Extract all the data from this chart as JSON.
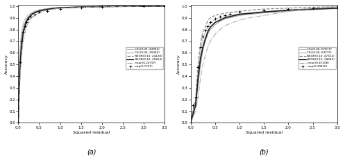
{
  "xlabel": "Squared residual",
  "ylabel": "Accuracy",
  "legend_a": [
    "CSL(0.05: 43965)",
    "CSL(0.06: 25965)",
    "NEGR(0.10: 24228)",
    "NEGR(0.10: 29264)",
    "mean(0.24797)",
    "map(0.1797)"
  ],
  "legend_b": [
    "CSL(0.04: 67879)",
    "CSL(0.04: 64279)",
    "NEGR(0.10: 47322)",
    "NEGR(0.10: 39685)",
    "mean(0.47308)",
    "map(0.39430)"
  ],
  "plot_a": {
    "csl1": {
      "x": [
        0,
        0.02,
        0.04,
        0.06,
        0.08,
        0.1,
        0.12,
        0.15,
        0.18,
        0.2,
        0.25,
        0.3,
        0.35,
        0.4,
        0.5,
        0.6,
        0.7,
        0.8,
        1.0,
        1.5,
        2.0,
        2.5,
        3.0,
        3.5
      ],
      "y": [
        0,
        0.45,
        0.62,
        0.72,
        0.78,
        0.82,
        0.85,
        0.88,
        0.9,
        0.91,
        0.93,
        0.94,
        0.95,
        0.96,
        0.97,
        0.975,
        0.98,
        0.985,
        0.99,
        0.995,
        0.998,
        0.999,
        1.0,
        1.0
      ]
    },
    "csl2": {
      "x": [
        0,
        0.02,
        0.04,
        0.06,
        0.08,
        0.1,
        0.12,
        0.15,
        0.18,
        0.2,
        0.25,
        0.3,
        0.35,
        0.4,
        0.5,
        0.6,
        0.7,
        0.8,
        1.0,
        1.5,
        2.0,
        2.5,
        3.0,
        3.5
      ],
      "y": [
        0,
        0.38,
        0.55,
        0.65,
        0.72,
        0.77,
        0.81,
        0.85,
        0.87,
        0.89,
        0.91,
        0.93,
        0.94,
        0.95,
        0.965,
        0.972,
        0.978,
        0.982,
        0.988,
        0.993,
        0.997,
        0.999,
        1.0,
        1.0
      ]
    },
    "negr1": {
      "x": [
        0,
        0.02,
        0.04,
        0.06,
        0.08,
        0.1,
        0.12,
        0.15,
        0.18,
        0.2,
        0.25,
        0.3,
        0.35,
        0.4,
        0.5,
        0.6,
        0.7,
        0.8,
        1.0,
        1.5,
        2.0,
        2.5,
        3.0,
        3.5
      ],
      "y": [
        0,
        0.3,
        0.5,
        0.63,
        0.7,
        0.76,
        0.8,
        0.84,
        0.87,
        0.89,
        0.91,
        0.93,
        0.94,
        0.95,
        0.96,
        0.97,
        0.975,
        0.98,
        0.987,
        0.992,
        0.996,
        0.998,
        1.0,
        1.0
      ]
    },
    "negr2": {
      "x": [
        0,
        0.02,
        0.04,
        0.06,
        0.08,
        0.1,
        0.12,
        0.15,
        0.18,
        0.2,
        0.25,
        0.3,
        0.35,
        0.4,
        0.5,
        0.6,
        0.7,
        0.8,
        1.0,
        1.5,
        2.0,
        2.5,
        3.0,
        3.5
      ],
      "y": [
        0,
        0.25,
        0.44,
        0.57,
        0.65,
        0.72,
        0.77,
        0.81,
        0.85,
        0.87,
        0.9,
        0.92,
        0.935,
        0.945,
        0.957,
        0.965,
        0.972,
        0.978,
        0.985,
        0.992,
        0.996,
        0.998,
        0.999,
        1.0
      ]
    },
    "mean": {
      "x": [
        0,
        0.02,
        0.04,
        0.06,
        0.08,
        0.1,
        0.12,
        0.15,
        0.18,
        0.2,
        0.22,
        0.25,
        0.28,
        0.3,
        0.35,
        0.4,
        0.5,
        0.6,
        0.7,
        0.8,
        1.0,
        1.5,
        2.0,
        2.5,
        3.0,
        3.5
      ],
      "y": [
        0,
        0.18,
        0.35,
        0.48,
        0.57,
        0.64,
        0.7,
        0.75,
        0.79,
        0.82,
        0.84,
        0.86,
        0.88,
        0.89,
        0.91,
        0.92,
        0.94,
        0.955,
        0.965,
        0.972,
        0.982,
        0.99,
        0.994,
        0.997,
        0.999,
        1.0
      ]
    },
    "map": {
      "x": [
        0,
        0.04,
        0.08,
        0.12,
        0.16,
        0.2,
        0.25,
        0.3,
        0.4,
        0.5,
        0.7,
        1.0,
        1.5,
        2.0,
        3.0,
        3.5
      ],
      "y": [
        0,
        0.52,
        0.7,
        0.78,
        0.83,
        0.86,
        0.89,
        0.91,
        0.93,
        0.95,
        0.96,
        0.975,
        0.986,
        0.991,
        0.997,
        1.0
      ]
    }
  },
  "plot_b": {
    "negr1": {
      "x": [
        0,
        0.05,
        0.1,
        0.15,
        0.2,
        0.25,
        0.3,
        0.35,
        0.4,
        0.45,
        0.5,
        0.6,
        0.7,
        0.8,
        0.9,
        1.0,
        1.1,
        1.2,
        1.5,
        2.0,
        2.5,
        3.0
      ],
      "y": [
        0,
        0.12,
        0.2,
        0.5,
        0.68,
        0.78,
        0.82,
        0.88,
        0.9,
        0.91,
        0.92,
        0.93,
        0.94,
        0.945,
        0.95,
        0.955,
        0.96,
        0.965,
        0.975,
        0.983,
        0.99,
        0.995
      ]
    },
    "negr2": {
      "x": [
        0,
        0.05,
        0.1,
        0.15,
        0.2,
        0.25,
        0.3,
        0.35,
        0.4,
        0.5,
        0.6,
        0.7,
        0.8,
        1.0,
        1.5,
        2.0,
        2.5,
        3.0
      ],
      "y": [
        0,
        0.08,
        0.15,
        0.38,
        0.55,
        0.65,
        0.72,
        0.78,
        0.82,
        0.86,
        0.88,
        0.9,
        0.91,
        0.93,
        0.95,
        0.965,
        0.975,
        0.983
      ]
    },
    "csl1": {
      "x": [
        0,
        0.05,
        0.1,
        0.15,
        0.2,
        0.25,
        0.3,
        0.35,
        0.4,
        0.5,
        0.6,
        0.7,
        0.8,
        1.0,
        1.5,
        2.0,
        2.5,
        3.0
      ],
      "y": [
        0,
        0.1,
        0.18,
        0.42,
        0.62,
        0.72,
        0.78,
        0.82,
        0.86,
        0.89,
        0.9,
        0.91,
        0.92,
        0.935,
        0.952,
        0.965,
        0.975,
        0.982
      ]
    },
    "csl2": {
      "x": [
        0,
        0.05,
        0.1,
        0.15,
        0.2,
        0.25,
        0.3,
        0.35,
        0.4,
        0.5,
        0.6,
        0.7,
        0.8,
        1.0,
        1.5,
        2.0,
        2.5,
        3.0
      ],
      "y": [
        0,
        0.07,
        0.14,
        0.32,
        0.5,
        0.62,
        0.7,
        0.76,
        0.8,
        0.84,
        0.87,
        0.89,
        0.9,
        0.92,
        0.942,
        0.957,
        0.97,
        0.978
      ]
    },
    "mean": {
      "x": [
        0,
        0.05,
        0.1,
        0.15,
        0.2,
        0.25,
        0.3,
        0.35,
        0.4,
        0.5,
        0.6,
        0.7,
        0.8,
        1.0,
        1.2,
        1.5,
        2.0,
        2.3,
        2.5,
        2.7,
        3.0
      ],
      "y": [
        0,
        0.05,
        0.1,
        0.22,
        0.38,
        0.5,
        0.58,
        0.65,
        0.7,
        0.76,
        0.8,
        0.83,
        0.85,
        0.88,
        0.9,
        0.92,
        0.955,
        0.972,
        0.982,
        0.988,
        0.992
      ]
    },
    "map": {
      "x": [
        0,
        0.05,
        0.1,
        0.15,
        0.2,
        0.25,
        0.3,
        0.35,
        0.4,
        0.5,
        0.6,
        0.7,
        0.8,
        1.0,
        1.5,
        2.0,
        2.5,
        3.0
      ],
      "y": [
        0,
        0.15,
        0.22,
        0.48,
        0.65,
        0.74,
        0.79,
        0.83,
        0.86,
        0.89,
        0.91,
        0.92,
        0.935,
        0.95,
        0.966,
        0.976,
        0.984,
        0.99
      ]
    }
  },
  "xticks_a": [
    0,
    0.5,
    1.0,
    1.5,
    2.0,
    2.5,
    3.0,
    3.5
  ],
  "xticks_b": [
    0,
    0.5,
    1.0,
    1.5,
    2.0,
    2.5,
    3.0
  ],
  "yticks": [
    0,
    0.1,
    0.2,
    0.3,
    0.4,
    0.5,
    0.6,
    0.7,
    0.8,
    0.9,
    1.0
  ],
  "xlim_a": [
    0,
    3.5
  ],
  "xlim_b": [
    0,
    3.0
  ],
  "ylim": [
    0,
    1.0
  ]
}
